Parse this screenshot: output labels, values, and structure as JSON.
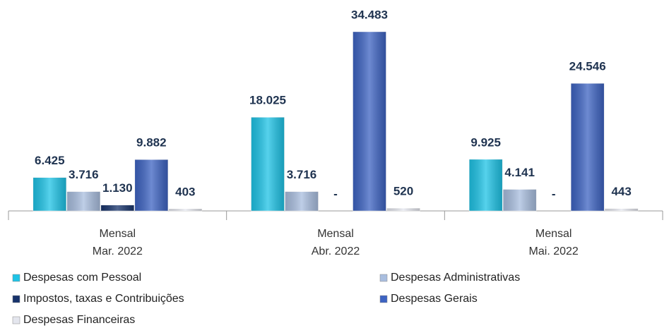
{
  "chart_data": {
    "type": "bar",
    "categories": [
      [
        "Mensal",
        "Mar. 2022"
      ],
      [
        "Mensal",
        "Abr. 2022"
      ],
      [
        "Mensal",
        "Mai. 2022"
      ]
    ],
    "series": [
      {
        "name": "Despesas com Pessoal",
        "color": "#1ec3e6",
        "values": [
          6425,
          18025,
          9925
        ],
        "value_labels": [
          "6.425",
          "18.025",
          "9.925"
        ]
      },
      {
        "name": "Despesas Administrativas",
        "color": "#a9bedf",
        "values": [
          3716,
          3716,
          4141
        ],
        "value_labels": [
          "3.716",
          "3.716",
          "4.141"
        ]
      },
      {
        "name": "Impostos, taxas e Contribuições",
        "color": "#17336b",
        "values": [
          1130,
          0,
          0
        ],
        "value_labels": [
          "1.130",
          "-",
          "-"
        ]
      },
      {
        "name": "Despesas Gerais",
        "color": "#3d63c2",
        "values": [
          9882,
          34483,
          24546
        ],
        "value_labels": [
          "9.882",
          "34.483",
          "24.546"
        ]
      },
      {
        "name": "Despesas Financeiras",
        "color": "#e4e6ee",
        "values": [
          403,
          520,
          443
        ],
        "value_labels": [
          "403",
          "520",
          "443"
        ]
      }
    ]
  }
}
